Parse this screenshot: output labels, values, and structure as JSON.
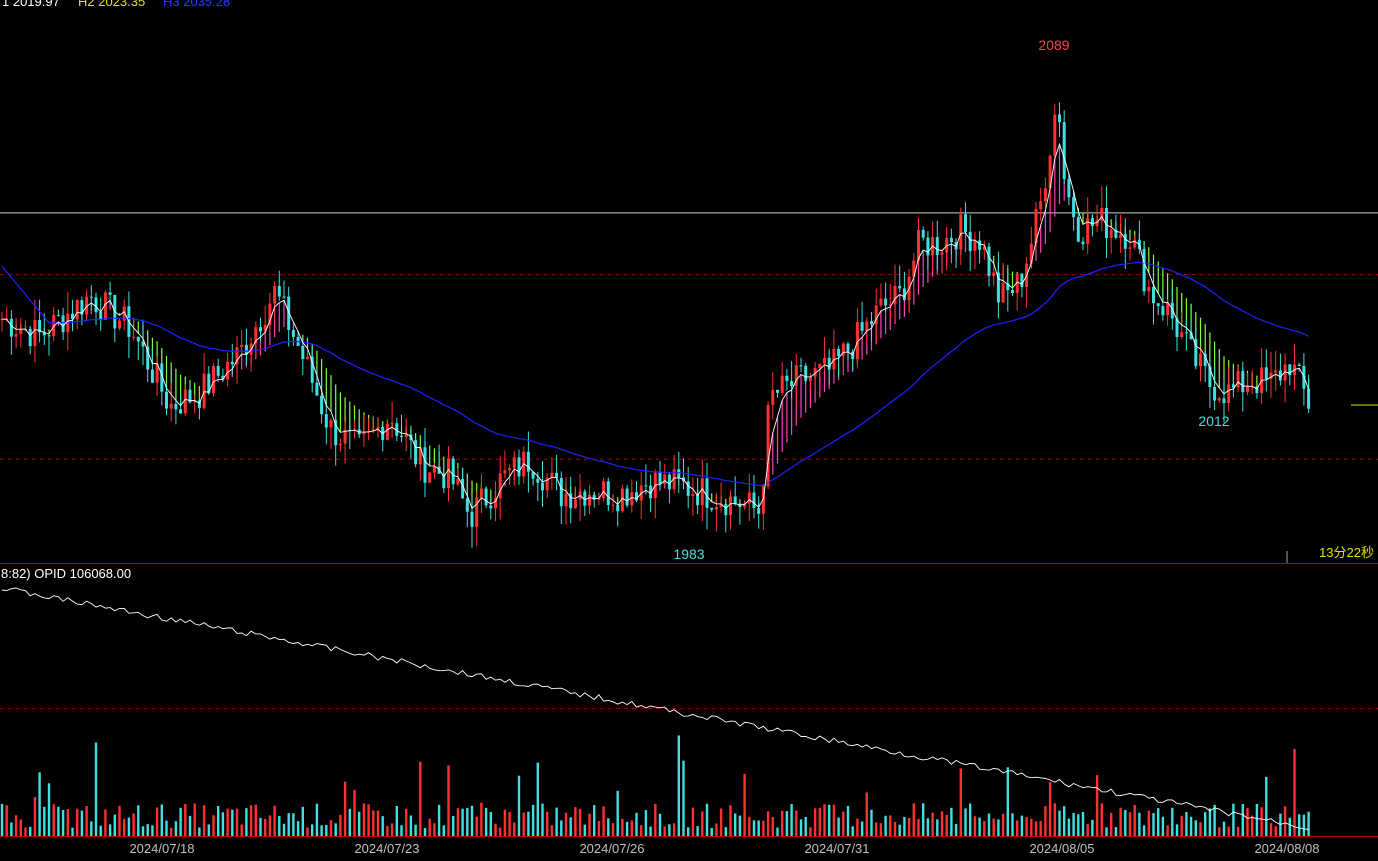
{
  "header": {
    "h1_label": "1 2019.97",
    "h2_label": "H2 2023.35",
    "h3_label": "H3 2035.28"
  },
  "annotations": {
    "high_label": "2089",
    "low_label": "1983",
    "low2_label": "2012",
    "countdown": "13分22秒"
  },
  "lower_panel": {
    "title": "8:82)  OPID 106068.00"
  },
  "x_axis": {
    "labels": [
      "2024/07/18",
      "2024/07/23",
      "2024/07/26",
      "2024/07/31",
      "2024/08/05",
      "2024/08/08"
    ]
  },
  "colors": {
    "background": "#000000",
    "up_candle": "#ff3030",
    "down_candle": "#40e0e0",
    "ribbon_down": "#80ff40",
    "ribbon_up": "#ff40c0",
    "ma_long": "#2020ff",
    "ma_short": "#ffffff",
    "grid_dashed": "#a00000",
    "axis_text": "#c0c0c0",
    "high_text": "#ff4040",
    "low_text": "#40e0e0",
    "countdown_text": "#e0e000"
  },
  "chart_data": [
    {
      "type": "candlestick",
      "panel": "price",
      "x_categories": [
        "2024/07/18",
        "2024/07/23",
        "2024/07/26",
        "2024/07/31",
        "2024/08/05",
        "2024/08/08"
      ],
      "y_range": [
        1975,
        2100
      ],
      "reference_lines": {
        "solid_white": 2054,
        "dashed_upper": 2040,
        "dashed_lower": 1998
      },
      "close_path": [
        [
          0,
          2030
        ],
        [
          40,
          2026
        ],
        [
          90,
          2035
        ],
        [
          130,
          2028
        ],
        [
          170,
          2010
        ],
        [
          200,
          2013
        ],
        [
          240,
          2022
        ],
        [
          275,
          2036
        ],
        [
          305,
          2020
        ],
        [
          330,
          2005
        ],
        [
          360,
          2000
        ],
        [
          390,
          2008
        ],
        [
          420,
          1997
        ],
        [
          450,
          1994
        ],
        [
          470,
          1985
        ],
        [
          500,
          1993
        ],
        [
          530,
          1998
        ],
        [
          560,
          1990
        ],
        [
          590,
          1991
        ],
        [
          620,
          1990
        ],
        [
          650,
          1993
        ],
        [
          680,
          1992
        ],
        [
          710,
          1990
        ],
        [
          740,
          1988
        ],
        [
          760,
          1986
        ],
        [
          770,
          2012
        ],
        [
          800,
          2016
        ],
        [
          830,
          2018
        ],
        [
          860,
          2026
        ],
        [
          880,
          2032
        ],
        [
          900,
          2035
        ],
        [
          920,
          2047
        ],
        [
          940,
          2047
        ],
        [
          960,
          2050
        ],
        [
          980,
          2048
        ],
        [
          1000,
          2034
        ],
        [
          1020,
          2038
        ],
        [
          1040,
          2055
        ],
        [
          1058,
          2081
        ],
        [
          1065,
          2060
        ],
        [
          1080,
          2050
        ],
        [
          1100,
          2052
        ],
        [
          1130,
          2049
        ],
        [
          1150,
          2036
        ],
        [
          1170,
          2031
        ],
        [
          1190,
          2022
        ],
        [
          1210,
          2015
        ],
        [
          1230,
          2013
        ],
        [
          1250,
          2016
        ],
        [
          1270,
          2015
        ],
        [
          1290,
          2020
        ],
        [
          1310,
          2010
        ]
      ],
      "annotated_values": {
        "high": 2089,
        "low": 1983,
        "recent_low": 2012
      }
    },
    {
      "type": "bar",
      "panel": "volume",
      "series": [
        {
          "name": "OPID",
          "last_value": 106068.0
        }
      ]
    }
  ]
}
